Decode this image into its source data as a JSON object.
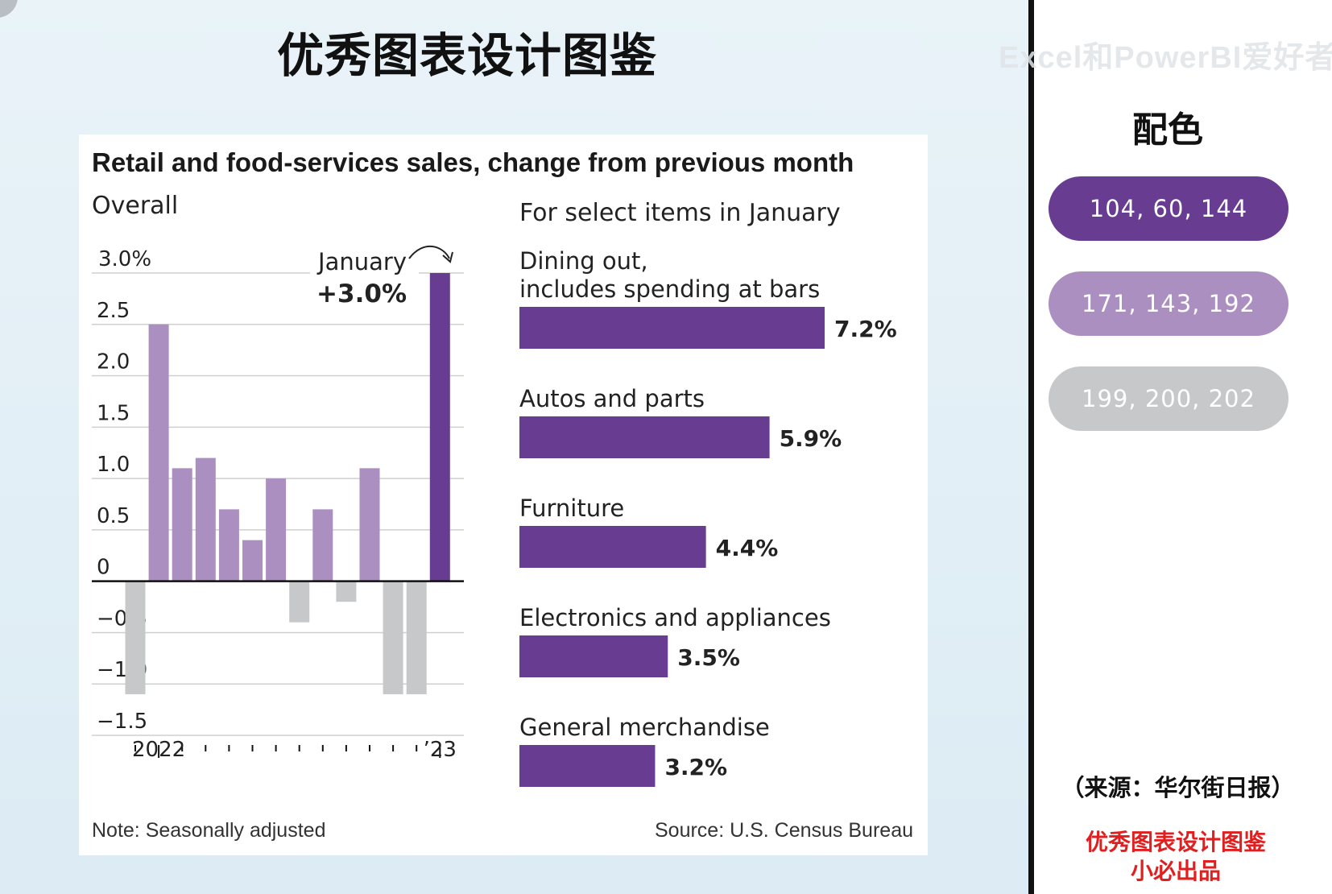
{
  "page": {
    "main_title": "优秀图表设计图鉴",
    "watermark": "Excel和PowerBI爱好者",
    "palette_title": "配色",
    "swatches": [
      {
        "label": "104, 60, 144",
        "color": "#683c90"
      },
      {
        "label": "171, 143, 192",
        "color": "#ab8fc0"
      },
      {
        "label": "199, 200, 202",
        "color": "#c7c8ca"
      }
    ],
    "source_cn": "（来源：华尔街日报）",
    "brand_line1": "优秀图表设计图鉴",
    "brand_line2": "小必出品"
  },
  "chart_data": [
    {
      "type": "bar",
      "title": "Retail and food-services sales, change from previous month",
      "subtitle": "Overall",
      "x_tick_labels": [
        "2022",
        "’23"
      ],
      "y_tick_labels": [
        "3.0%",
        "2.5",
        "2.0",
        "1.5",
        "1.0",
        "0.5",
        "0",
        "−0.5",
        "−1.0",
        "−1.5"
      ],
      "y_ticks": [
        3.0,
        2.5,
        2.0,
        1.5,
        1.0,
        0.5,
        0,
        -0.5,
        -1.0,
        -1.5
      ],
      "ylim": [
        -1.5,
        3.0
      ],
      "values": [
        -1.1,
        2.5,
        1.1,
        1.2,
        0.7,
        0.4,
        1.0,
        -0.4,
        0.7,
        -0.2,
        1.1,
        -1.1,
        -1.1,
        3.0
      ],
      "colors": {
        "positive": "#ab8fc0",
        "negative": "#c7c8ca",
        "highlight": "#683c90"
      },
      "highlight_index": 13,
      "annotation": {
        "label": "January",
        "value": "+3.0%"
      },
      "grid": true,
      "note": "Note: Seasonally adjusted"
    },
    {
      "type": "bar",
      "orientation": "horizontal",
      "subtitle": "For select items in January",
      "categories": [
        [
          "Dining out,",
          "includes spending at bars"
        ],
        [
          "Autos and parts"
        ],
        [
          "Furniture"
        ],
        [
          "Electronics and appliances"
        ],
        [
          "General merchandise"
        ]
      ],
      "values": [
        7.2,
        5.9,
        4.4,
        3.5,
        3.2
      ],
      "value_labels": [
        "7.2%",
        "5.9%",
        "4.4%",
        "3.5%",
        "3.2%"
      ],
      "color": "#683c90",
      "source": "Source: U.S. Census Bureau"
    }
  ]
}
